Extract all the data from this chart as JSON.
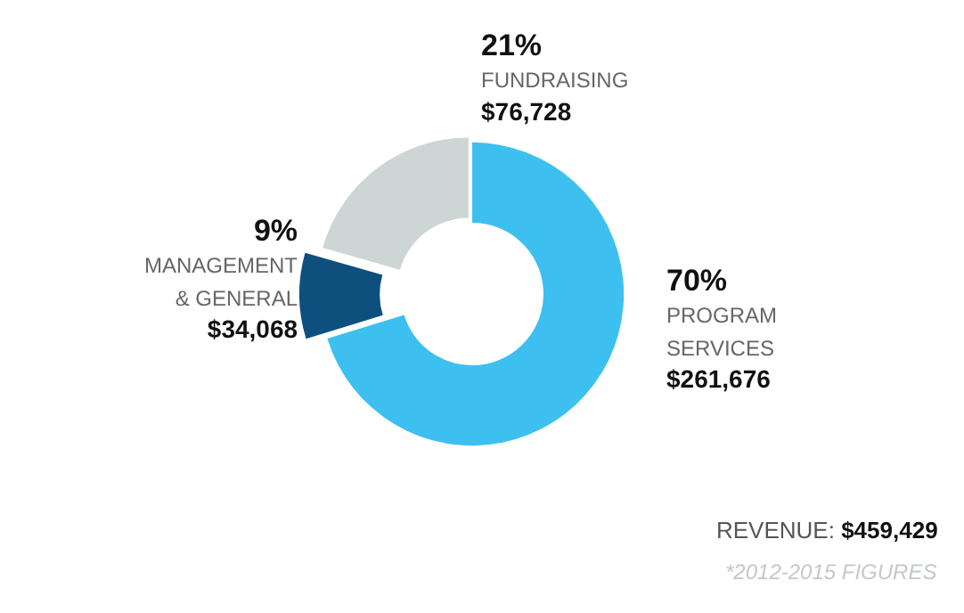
{
  "chart_data": {
    "type": "donut",
    "categories": [
      "PROGRAM SERVICES",
      "MANAGEMENT & GENERAL",
      "FUNDRAISING"
    ],
    "values": [
      261676,
      34068,
      76728
    ],
    "colors": [
      "#3dc0f0",
      "#0f4f7e",
      "#cdd6d5"
    ],
    "value_labels": [
      "$261,676",
      "$34,068",
      "$76,728"
    ],
    "annotations": [
      "70%",
      "9%",
      "21%",
      "REVENUE: $459,429",
      "*2012-2015 FIGURES"
    ],
    "legend": false
  }
}
